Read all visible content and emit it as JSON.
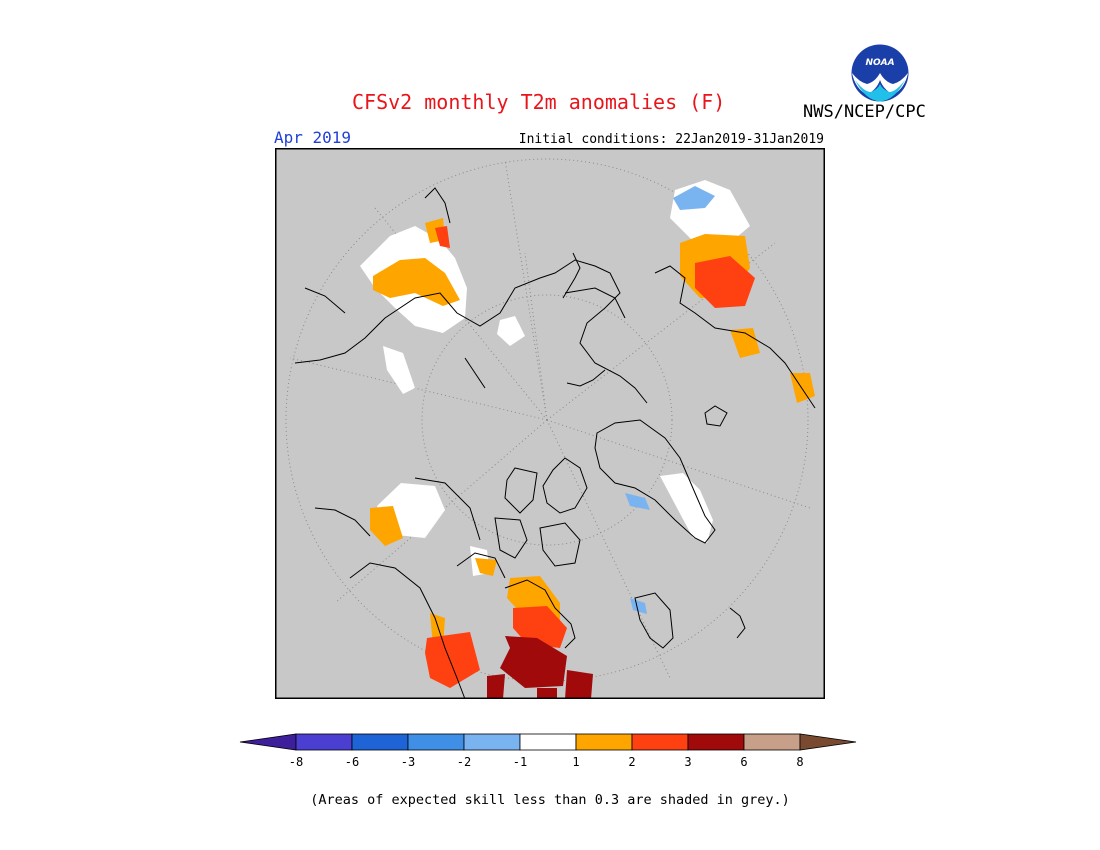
{
  "header": {
    "title": "CFSv2 monthly T2m anomalies (F)",
    "agency": "NWS/NCEP/CPC",
    "valid_month": "Apr 2019",
    "initial_conditions": "Initial conditions: 22Jan2019-31Jan2019",
    "logo_text": "NOAA"
  },
  "legend": {
    "bins": [
      {
        "color": "#3d1f9c",
        "tick": "-8"
      },
      {
        "color": "#4a3fd0",
        "tick": "-6"
      },
      {
        "color": "#1e64d6",
        "tick": "-3"
      },
      {
        "color": "#3f8fe6",
        "tick": "-2"
      },
      {
        "color": "#7ab4f0",
        "tick": "-1"
      },
      {
        "color": "#ffffff",
        "tick": "1"
      },
      {
        "color": "#ffa500",
        "tick": "2"
      },
      {
        "color": "#ff4010",
        "tick": "3"
      },
      {
        "color": "#a00a0a",
        "tick": "6"
      },
      {
        "color": "#c8a08a",
        "tick": "8"
      },
      {
        "color": "#7a4a30",
        "tick": ""
      }
    ]
  },
  "colors": {
    "skill_mask_grey": "#c8c8c8",
    "coastline": "#000000",
    "graticule": "#8a8a8a"
  },
  "footer": {
    "note": "(Areas of expected skill less than 0.3 are shaded in grey.)"
  }
}
